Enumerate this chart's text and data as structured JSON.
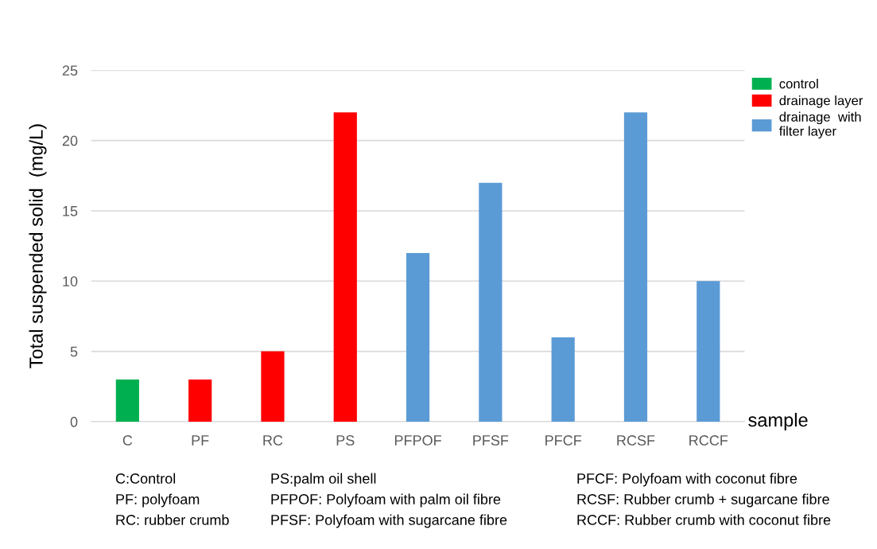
{
  "chart_data": {
    "type": "bar",
    "categories": [
      "C",
      "PF",
      "RC",
      "PS",
      "PFPOF",
      "PFSF",
      "PFCF",
      "RCSF",
      "RCCF"
    ],
    "series": [
      {
        "name": "control",
        "color": "#00b050",
        "values": [
          3,
          null,
          null,
          null,
          null,
          null,
          null,
          null,
          null
        ]
      },
      {
        "name": "drainage layer",
        "color": "#ff0000",
        "values": [
          null,
          3,
          5,
          22,
          null,
          null,
          null,
          null,
          null
        ]
      },
      {
        "name": "drainage  with\nfilter layer",
        "color": "#5b9bd5",
        "values": [
          null,
          null,
          null,
          null,
          12,
          17,
          6,
          22,
          10
        ]
      }
    ],
    "ylabel": "Total suspended solid  (mg/L)",
    "xlabel": "sample",
    "ylim": [
      0,
      25
    ],
    "yticks": [
      0,
      5,
      10,
      15,
      20,
      25
    ],
    "grid": "y",
    "legend": "top right",
    "annotations": [
      "C:Control",
      "PF: polyfoam",
      "RC: rubber crumb",
      "PS:palm oil shell",
      "PFPOF: Polyfoam with palm oil fibre",
      "PFSF: Polyfoam with sugarcane fibre",
      "PFCF: Polyfoam with coconut fibre",
      "RCSF: Rubber crumb + sugarcane fibre",
      "RCCF: Rubber crumb with coconut fibre"
    ]
  }
}
